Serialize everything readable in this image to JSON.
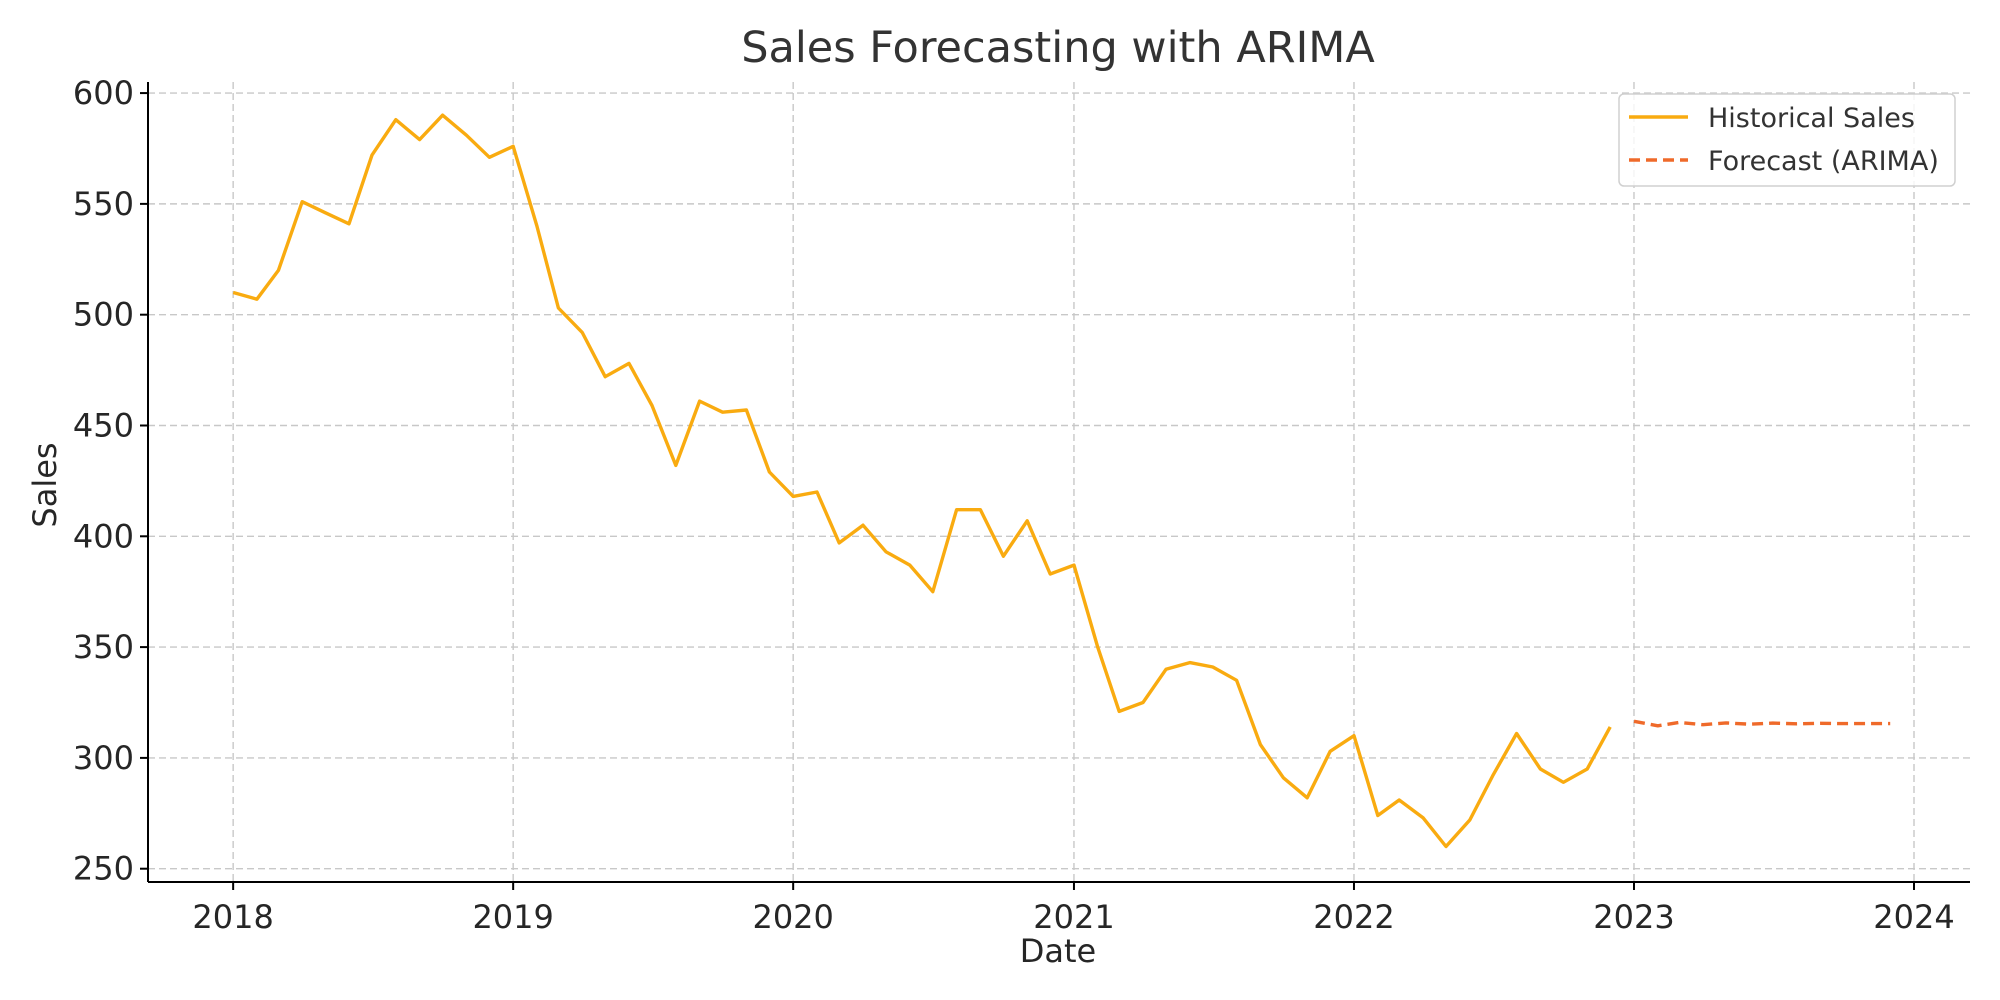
{
  "colors": {
    "historical": "#f9ab10",
    "forecast": "#ef6a2a",
    "grid": "#c8c8c8",
    "axis": "#000000"
  },
  "chart_data": {
    "type": "line",
    "title": "Sales Forecasting with ARIMA",
    "xlabel": "Date",
    "ylabel": "Sales",
    "x_ticks": [
      "2018",
      "2019",
      "2020",
      "2021",
      "2022",
      "2023",
      "2024"
    ],
    "y_ticks": [
      250,
      300,
      350,
      400,
      450,
      500,
      550,
      600
    ],
    "xlim": [
      "2017-09-12",
      "2024-03-14"
    ],
    "ylim": [
      244,
      605
    ],
    "grid": true,
    "legend_position": "top-right",
    "series": [
      {
        "name": "Historical Sales",
        "style": "solid",
        "x": [
          "2018-01",
          "2018-02",
          "2018-03",
          "2018-04",
          "2018-05",
          "2018-06",
          "2018-07",
          "2018-08",
          "2018-09",
          "2018-10",
          "2018-11",
          "2018-12",
          "2019-01",
          "2019-02",
          "2019-03",
          "2019-04",
          "2019-05",
          "2019-06",
          "2019-07",
          "2019-08",
          "2019-09",
          "2019-10",
          "2019-11",
          "2019-12",
          "2020-01",
          "2020-02",
          "2020-03",
          "2020-04",
          "2020-05",
          "2020-06",
          "2020-07",
          "2020-08",
          "2020-09",
          "2020-10",
          "2020-11",
          "2020-12",
          "2021-01",
          "2021-02",
          "2021-03",
          "2021-04",
          "2021-05",
          "2021-06",
          "2021-07",
          "2021-08",
          "2021-09",
          "2021-10",
          "2021-11",
          "2021-12",
          "2022-01",
          "2022-02",
          "2022-03",
          "2022-04",
          "2022-05",
          "2022-06",
          "2022-07",
          "2022-08",
          "2022-09",
          "2022-10",
          "2022-11",
          "2022-12"
        ],
        "values": [
          510,
          507,
          520,
          551,
          546,
          541,
          572,
          588,
          579,
          590,
          581,
          571,
          576,
          540,
          503,
          492,
          472,
          478,
          459,
          432,
          461,
          456,
          457,
          429,
          418,
          420,
          397,
          405,
          393,
          387,
          375,
          412,
          412,
          391,
          407,
          383,
          387,
          350,
          321,
          325,
          340,
          343,
          341,
          335,
          306,
          291,
          282,
          303,
          310,
          274,
          281,
          273,
          260,
          272,
          292,
          311,
          295,
          289,
          295,
          314
        ]
      },
      {
        "name": "Forecast (ARIMA)",
        "style": "dashed",
        "x": [
          "2023-01",
          "2023-02",
          "2023-03",
          "2023-04",
          "2023-05",
          "2023-06",
          "2023-07",
          "2023-08",
          "2023-09",
          "2023-10",
          "2023-11",
          "2023-12"
        ],
        "values": [
          316.5,
          314.5,
          316,
          315,
          315.8,
          315.2,
          315.7,
          315.4,
          315.6,
          315.5,
          315.5,
          315.5
        ]
      }
    ]
  }
}
